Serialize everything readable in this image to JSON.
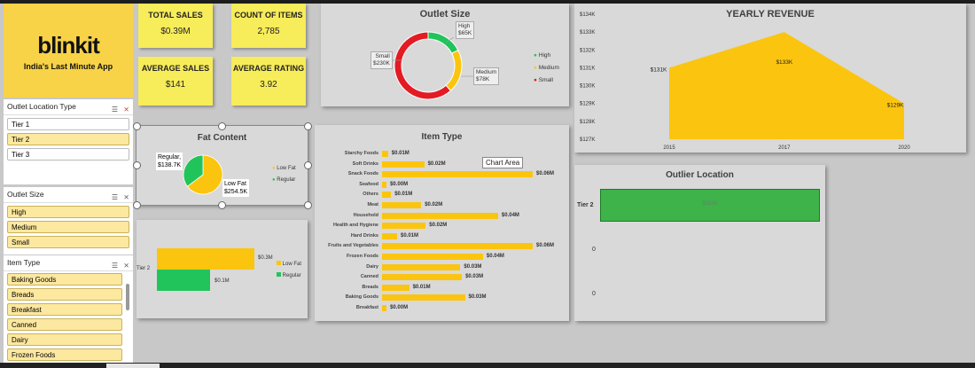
{
  "brand": {
    "logo_text": "blinkit",
    "tagline": "India's Last Minute App",
    "bg_color": "#f8d247"
  },
  "kpis": [
    {
      "label": "TOTAL SALES",
      "value": "$0.39M"
    },
    {
      "label": "COUNT OF ITEMS",
      "value": "2,785"
    },
    {
      "label": "AVERAGE SALES",
      "value": "$141"
    },
    {
      "label": "AVERAGE RATING",
      "value": "3.92"
    }
  ],
  "slicers": {
    "outlet_location": {
      "title": "Outlet Location Type",
      "items": [
        "Tier 1",
        "Tier 2",
        "Tier 3"
      ],
      "selected": [
        "Tier 2"
      ]
    },
    "outlet_size": {
      "title": "Outlet Size",
      "items": [
        "High",
        "Medium",
        "Small"
      ]
    },
    "item_type": {
      "title": "Item Type",
      "items": [
        "Baking Goods",
        "Breads",
        "Breakfast",
        "Canned",
        "Dairy",
        "Frozen Foods"
      ]
    }
  },
  "outlet_size_chart": {
    "title": "Outlet Size",
    "labels": {
      "high": "High\n$65K",
      "medium": "Medium\n$78K",
      "small": "Small\n$230K"
    },
    "legend": [
      "High",
      "Medium",
      "Small"
    ],
    "colors": {
      "High": "#21c45a",
      "Medium": "#fbc50f",
      "Small": "#e31b23"
    }
  },
  "yearly_revenue": {
    "title": "YEARLY REVENUE",
    "y_ticks": [
      "$134K",
      "$133K",
      "$132K",
      "$131K",
      "$130K",
      "$129K",
      "$128K",
      "$127K"
    ],
    "x_labels": [
      "2015",
      "2017",
      "2020"
    ],
    "point_labels": [
      "$131K",
      "$133K",
      "$129K"
    ]
  },
  "fat_content": {
    "title": "Fat Content",
    "label_regular": "Regular,\n$138.7K",
    "label_lowfat": "Low Fat\n$254.5K",
    "legend": [
      "Low Fat",
      "Regular"
    ]
  },
  "fat_bar": {
    "y_label": "Tier 2",
    "lowfat_label": "$0.3M",
    "regular_label": "$0.1M",
    "legend": [
      "Low Fat",
      "Regular"
    ]
  },
  "item_type_chart": {
    "title": "Item Type",
    "tooltip": "Chart Area"
  },
  "outlier": {
    "title": "Outlier Location",
    "row_label": "Tier 2",
    "bar_value": "$393K",
    "zero_labels": [
      "0",
      "0"
    ]
  },
  "chart_data": [
    {
      "type": "pie",
      "title": "Outlet Size",
      "categories": [
        "High",
        "Medium",
        "Small"
      ],
      "values": [
        65,
        78,
        230
      ],
      "legend": "right"
    },
    {
      "type": "area",
      "title": "YEARLY REVENUE",
      "x": [
        "2015",
        "2017",
        "2020"
      ],
      "values": [
        131,
        133,
        129
      ],
      "ylim": [
        127,
        134
      ]
    },
    {
      "type": "pie",
      "title": "Fat Content",
      "categories": [
        "Low Fat",
        "Regular"
      ],
      "values": [
        254.5,
        138.7
      ],
      "legend": "right"
    },
    {
      "type": "bar",
      "categories": [
        "Tier 2"
      ],
      "series": [
        {
          "name": "Low Fat",
          "values": [
            0.3
          ]
        },
        {
          "name": "Regular",
          "values": [
            0.1
          ]
        }
      ],
      "legend": "right"
    },
    {
      "type": "bar",
      "title": "Item Type",
      "categories": [
        "Starchy Foods",
        "Soft Drinks",
        "Snack Foods",
        "Seafood",
        "Others",
        "Meat",
        "Household",
        "Health and Hygiene",
        "Hard Drinks",
        "Fruits and Vegetables",
        "Frozen Foods",
        "Dairy",
        "Canned",
        "Breads",
        "Baking Goods",
        "Breakfast"
      ],
      "values": [
        0.01,
        0.02,
        0.06,
        0.0,
        0.01,
        0.02,
        0.04,
        0.02,
        0.01,
        0.06,
        0.04,
        0.03,
        0.03,
        0.01,
        0.03,
        0.0
      ],
      "value_labels": [
        "$0.01M",
        "$0.02M",
        "$0.06M",
        "$0.00M",
        "$0.01M",
        "$0.02M",
        "$0.04M",
        "$0.02M",
        "$0.01M",
        "$0.06M",
        "$0.04M",
        "$0.03M",
        "$0.03M",
        "$0.01M",
        "$0.03M",
        "$0.00M"
      ],
      "bar_weights": [
        0.04,
        0.28,
        1.0,
        0.03,
        0.06,
        0.26,
        0.77,
        0.29,
        0.1,
        1.0,
        0.67,
        0.52,
        0.53,
        0.18,
        0.55,
        0.03
      ]
    },
    {
      "type": "bar",
      "title": "Outlier Location",
      "categories": [
        "Tier 2"
      ],
      "values": [
        393
      ]
    }
  ]
}
